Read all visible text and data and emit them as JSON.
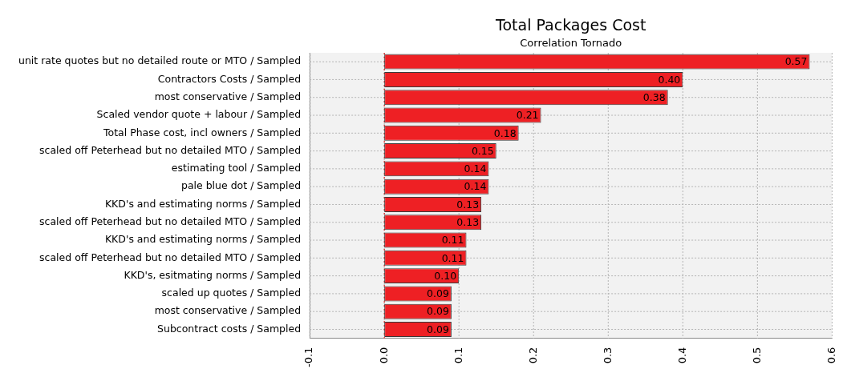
{
  "chart_data": {
    "type": "bar",
    "orientation": "horizontal",
    "title": "Total Packages Cost",
    "subtitle": "Correlation Tornado",
    "categories": [
      "unit rate quotes but no detailed route or MTO / Sampled",
      "Contractors Costs / Sampled",
      "most conservative / Sampled",
      "Scaled vendor quote + labour / Sampled",
      "Total Phase cost, incl owners / Sampled",
      "scaled off Peterhead but no detailed MTO / Sampled",
      "estimating tool / Sampled",
      "pale blue dot / Sampled",
      "KKD's and estimating norms / Sampled",
      "scaled off Peterhead but no detailed MTO / Sampled",
      "KKD's and estimating norms / Sampled",
      "scaled off Peterhead but no detailed MTO / Sampled",
      "KKD's, esitmating norms / Sampled",
      "scaled up quotes / Sampled",
      "most conservative / Sampled",
      "Subcontract costs / Sampled"
    ],
    "values": [
      0.57,
      0.4,
      0.38,
      0.21,
      0.18,
      0.15,
      0.14,
      0.14,
      0.13,
      0.13,
      0.11,
      0.11,
      0.1,
      0.09,
      0.09,
      0.09
    ],
    "value_labels": [
      "0.57",
      "0.40",
      "0.38",
      "0.21",
      "0.18",
      "0.15",
      "0.14",
      "0.14",
      "0.13",
      "0.13",
      "0.11",
      "0.11",
      "0.10",
      "0.09",
      "0.09",
      "0.09"
    ],
    "color": "#ee2024",
    "xlim": [
      -0.1,
      0.6
    ],
    "xticks": [
      -0.1,
      {
        "value": 0,
        "label": "0.0"
      },
      0.1,
      0.2,
      0.3,
      0.4,
      0.5,
      0.6
    ],
    "ref_lines": [
      {
        "axis": "x",
        "value": 0,
        "color": "#e00000",
        "line_style": "dotted"
      }
    ],
    "grid": true
  }
}
